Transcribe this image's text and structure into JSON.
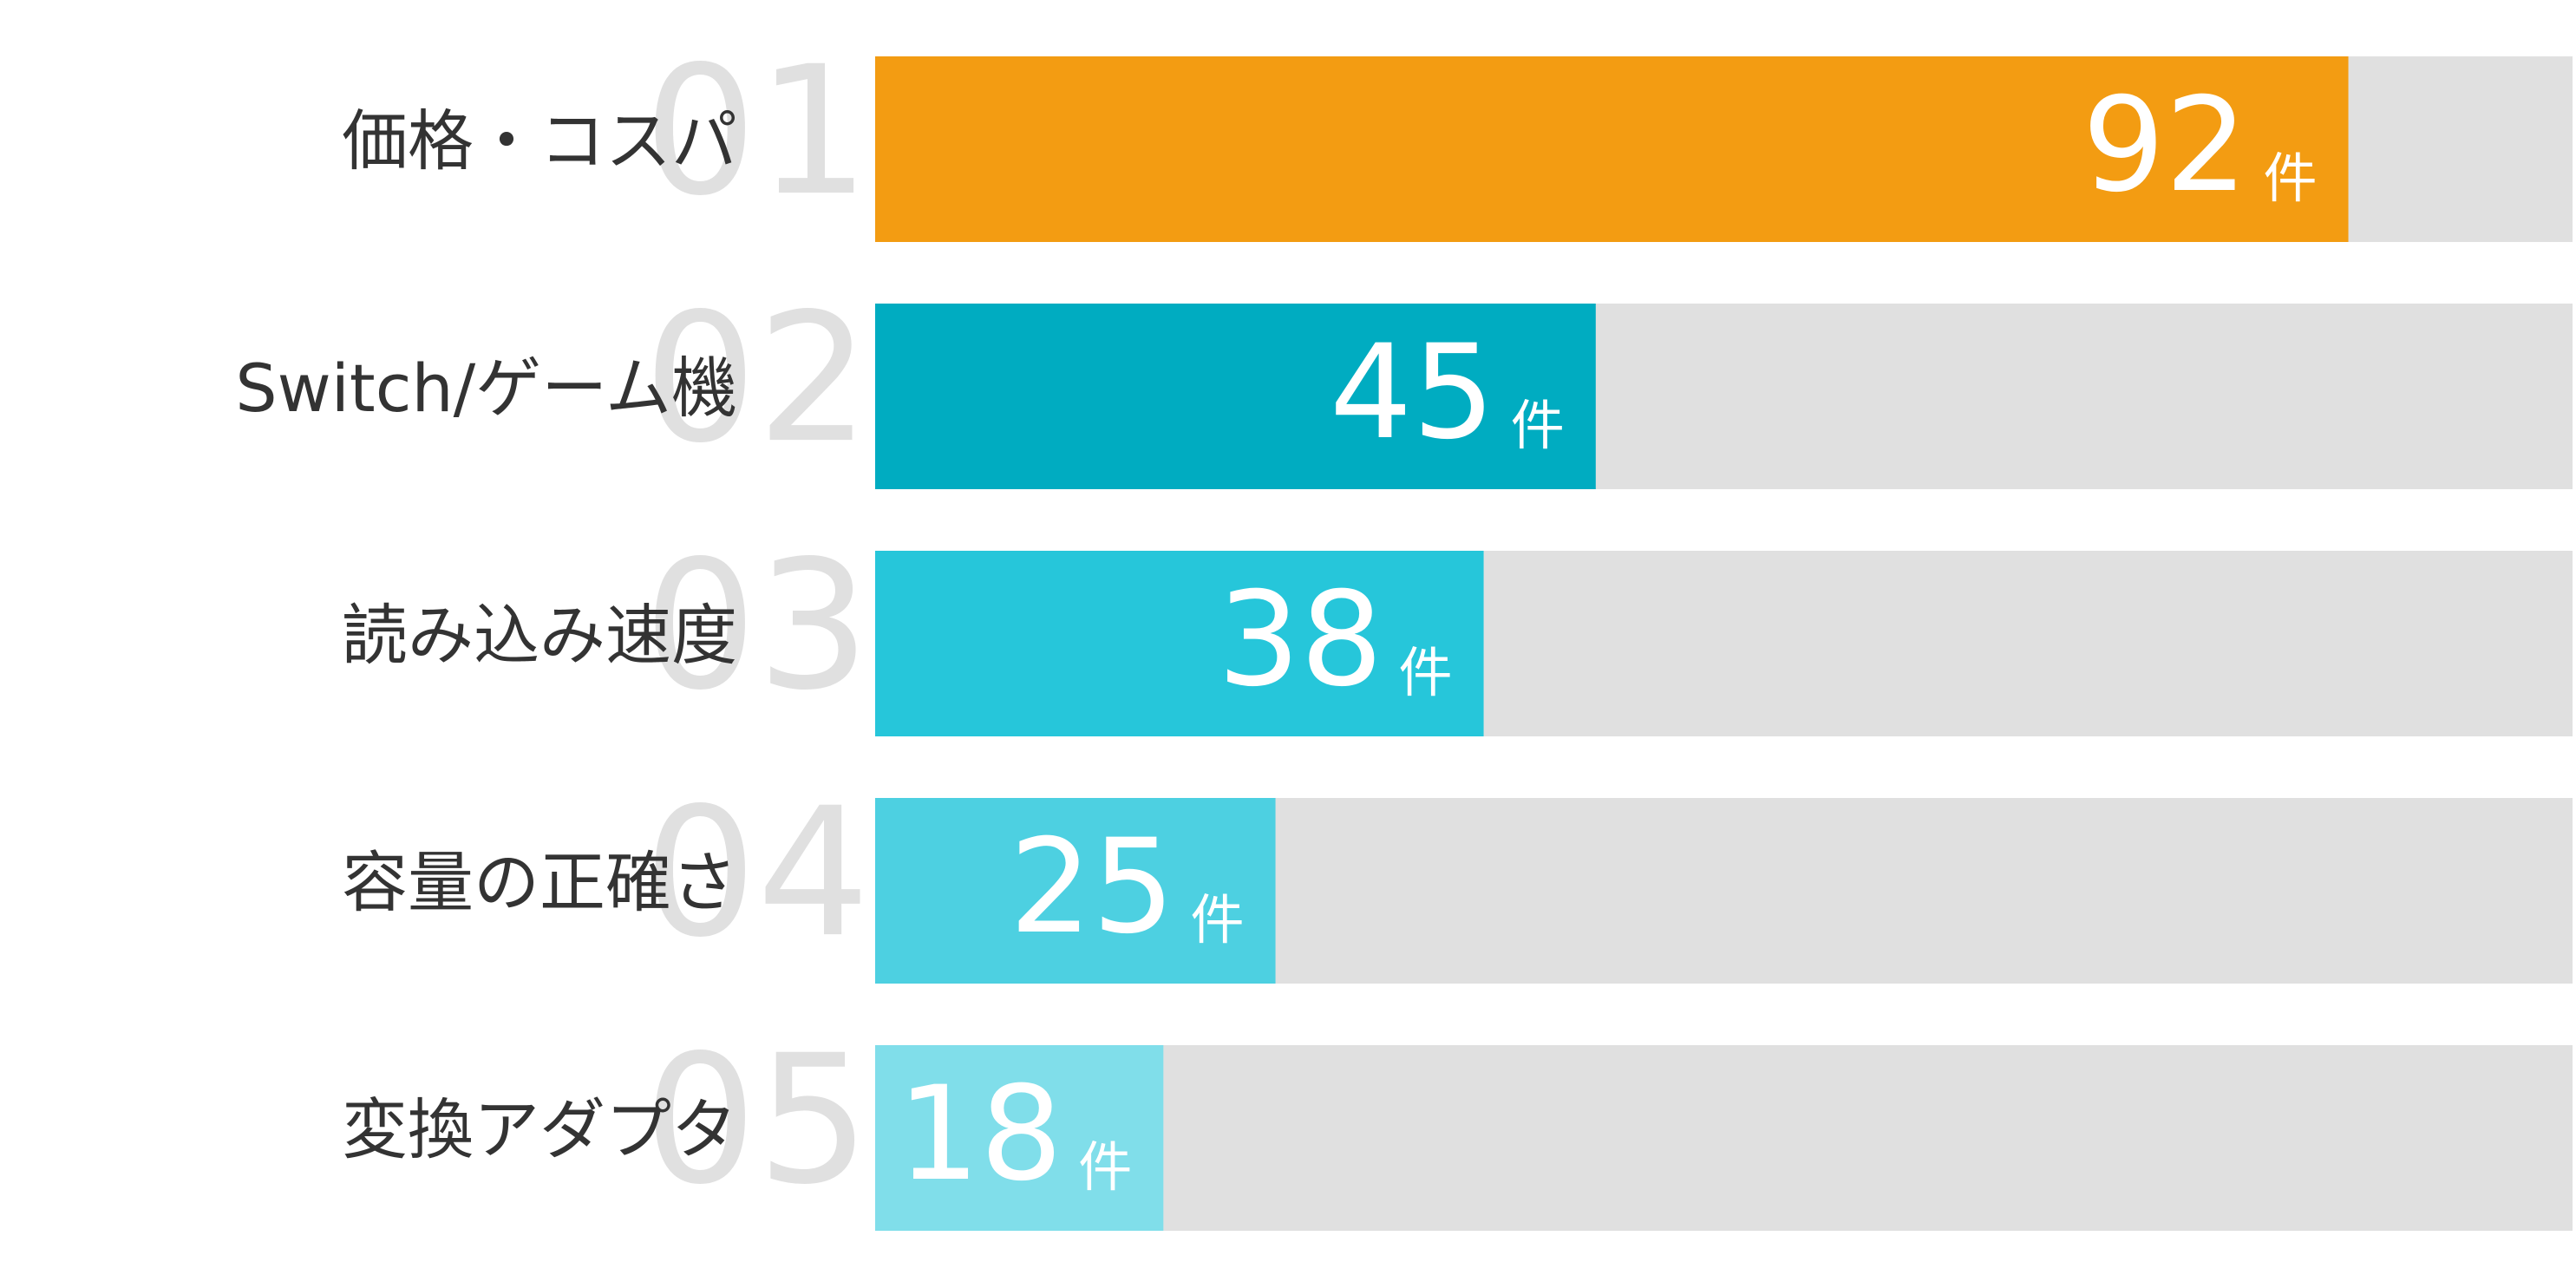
{
  "chart_data": {
    "type": "bar",
    "orientation": "horizontal",
    "categories": [
      "価格・コスパ",
      "Switch/ゲーム機",
      "読み込み速度",
      "容量の正確さ",
      "変換アダプタ"
    ],
    "ranks": [
      "01",
      "02",
      "03",
      "04",
      "05"
    ],
    "values": [
      92,
      45,
      38,
      25,
      18
    ],
    "unit": "件",
    "colors": [
      "#f39c12",
      "#00acc1",
      "#26c6da",
      "#4dd0e1",
      "#80deea"
    ],
    "track_color": "#e0e0e0",
    "xlim": [
      0,
      106
    ]
  }
}
